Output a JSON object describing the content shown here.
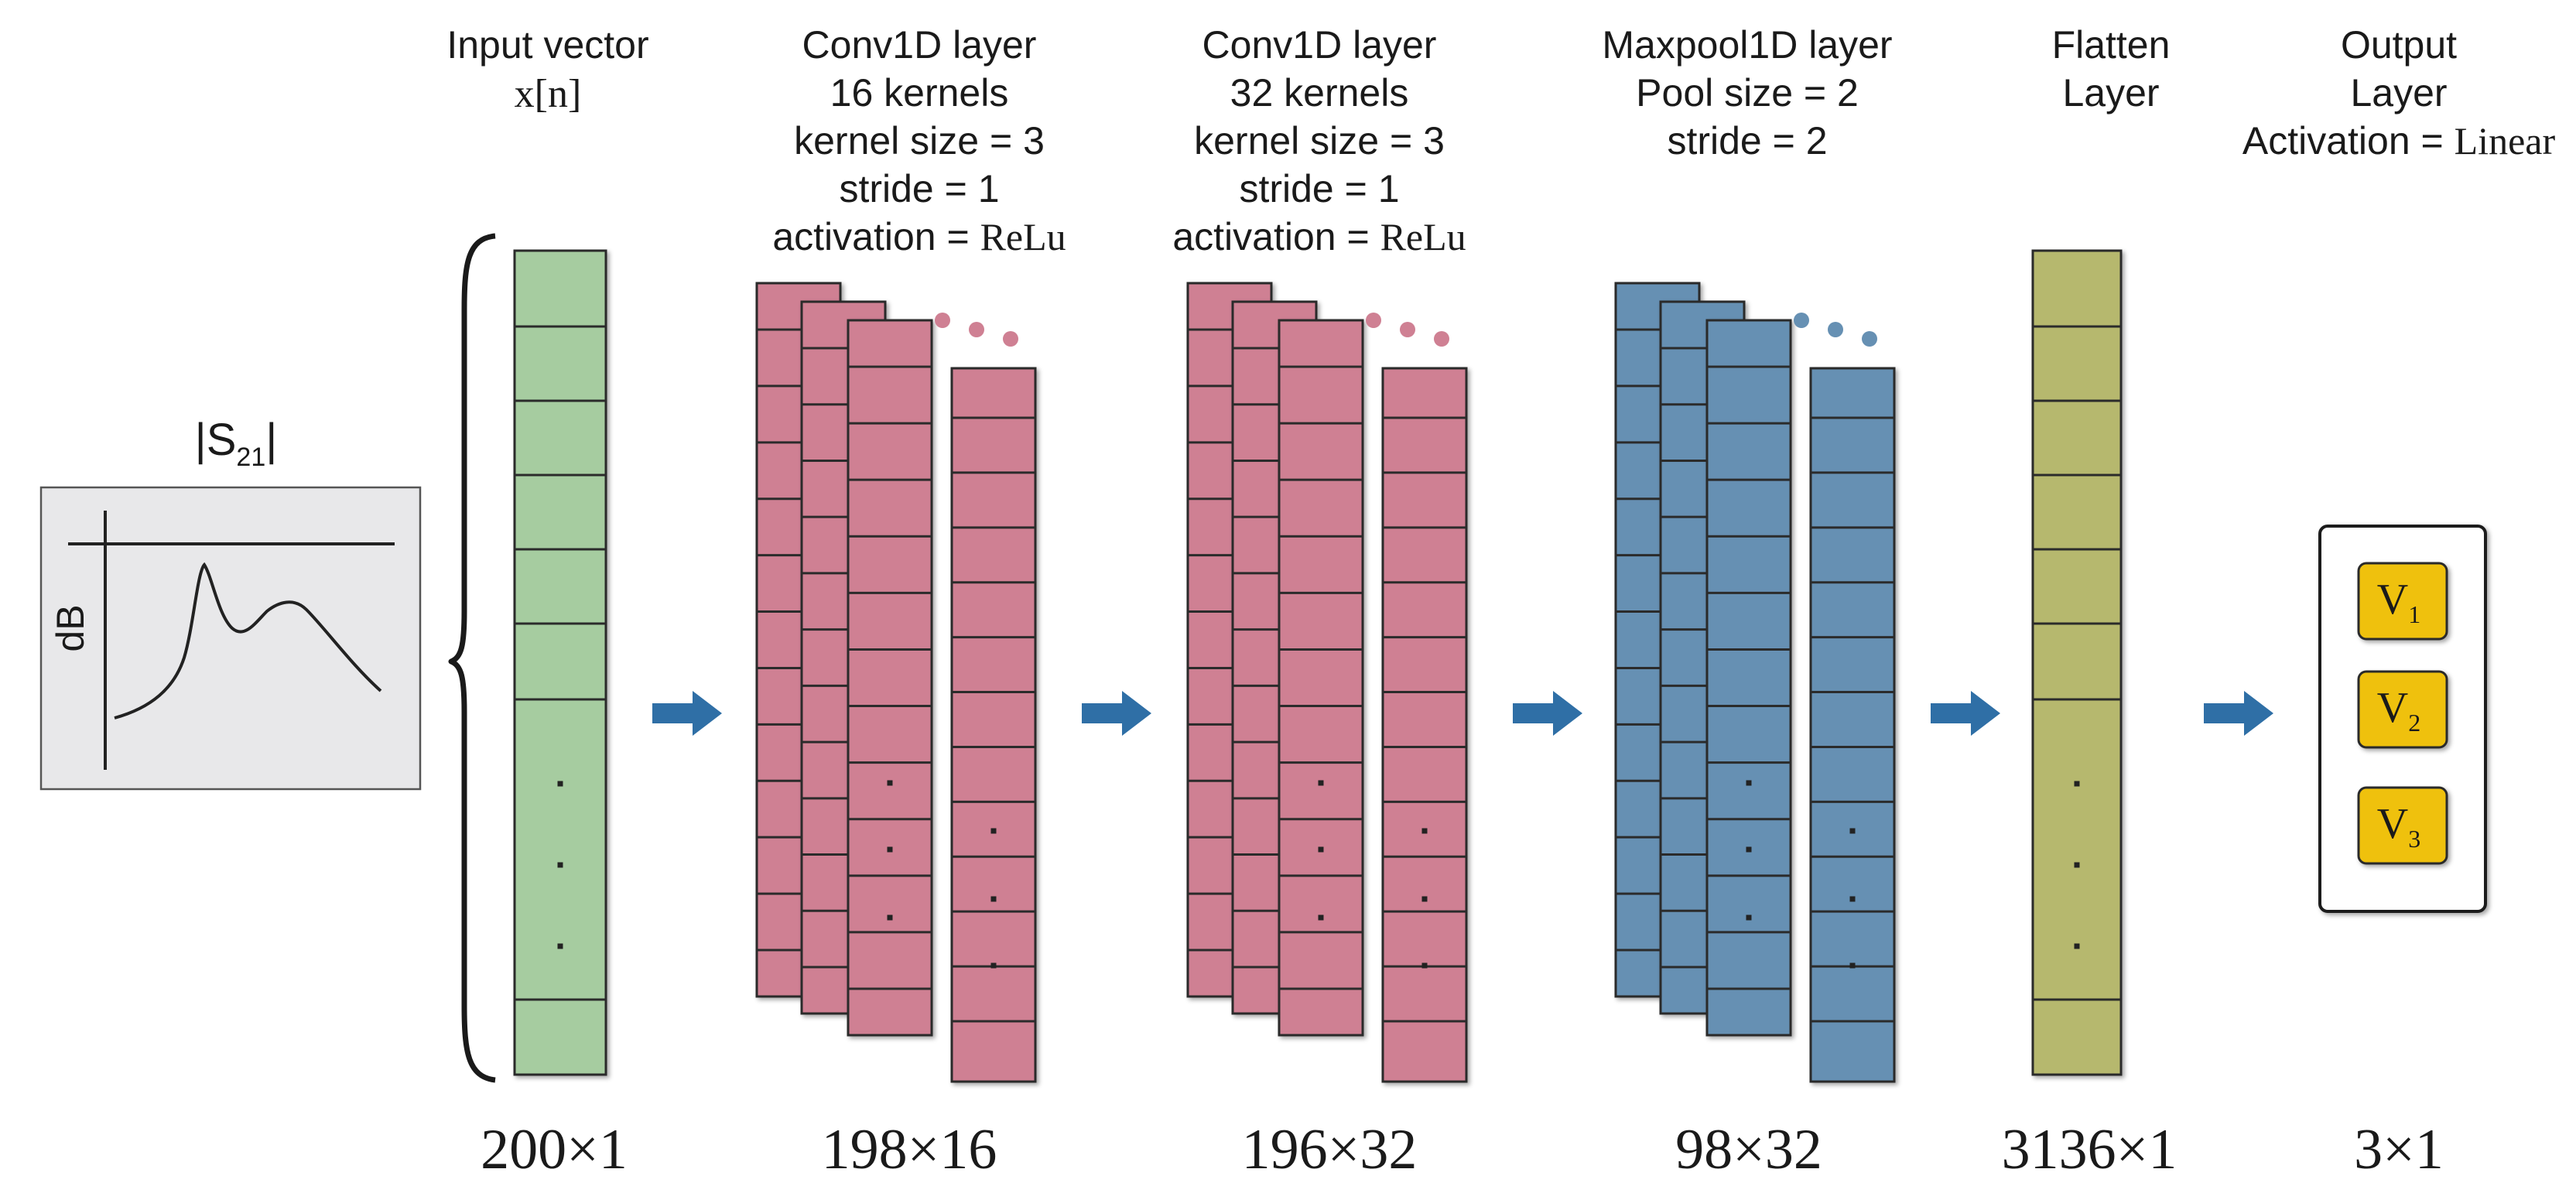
{
  "colors": {
    "input": "#a6cca0",
    "conv": "#cf8093",
    "pool": "#6690b3",
    "flatten": "#b6b86e",
    "output_node": "#efc10f",
    "arrow": "#2f6fa6",
    "stroke": "#2b2b2b",
    "plot_bg": "#e8e8ea"
  },
  "plot": {
    "title_main": "|S",
    "title_sub": "21",
    "title_end": "|",
    "ylabel": "dB"
  },
  "layers": {
    "input": {
      "title": "Input vector",
      "var": "x[n]",
      "dim": "200×1"
    },
    "conv1": {
      "lines": [
        "Conv1D layer",
        "16 kernels",
        "kernel size = 3",
        "stride = 1"
      ],
      "act_label": "activation = ",
      "act_value": "ReLu",
      "dim": "198×16"
    },
    "conv2": {
      "lines": [
        "Conv1D layer",
        "32 kernels",
        "kernel size = 3",
        "stride = 1"
      ],
      "act_label": "activation = ",
      "act_value": "ReLu",
      "dim": "196×32"
    },
    "pool": {
      "lines": [
        "Maxpool1D layer",
        "Pool size = 2",
        "stride = 2"
      ],
      "dim": "98×32"
    },
    "flatten": {
      "lines": [
        "Flatten",
        "Layer"
      ],
      "dim": "3136×1"
    },
    "output": {
      "lines": [
        "Output",
        "Layer"
      ],
      "act_label": "Activation = ",
      "act_value": "Linear",
      "dim": "3×1",
      "nodes": [
        {
          "letter": "V",
          "sub": "1"
        },
        {
          "letter": "V",
          "sub": "2"
        },
        {
          "letter": "V",
          "sub": "3"
        }
      ]
    }
  }
}
